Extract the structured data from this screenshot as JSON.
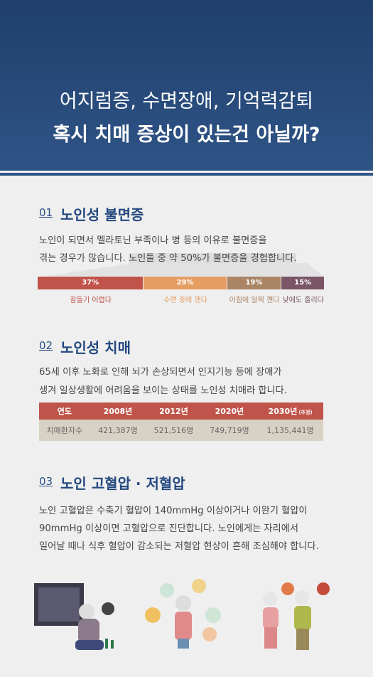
{
  "header": {
    "title_lines": [
      "어지럼증, 수면장애, 기억력감퇴",
      "혹시 치매 증상이 있는건 아닐까?"
    ]
  },
  "sections": [
    {
      "number": "01",
      "title": "노인성 불면증",
      "body_lines": [
        "노인이 되면서 멜라토닌 부족이나 병 등의 이유로 불면증을",
        "겪는 경우가 많습니다."
      ],
      "highlight": "노인들 중 약 50%가 불면증을 경험합니다.",
      "chart": {
        "type": "stacked-bar",
        "categories": [
          "잠들기 어렵다",
          "수면 중에 깬다",
          "아침에 일찍 깬다",
          "낮에도 졸리다"
        ],
        "values": [
          37,
          29,
          19,
          15
        ],
        "value_labels": [
          "37%",
          "29%",
          "19%",
          "15%"
        ],
        "colors": [
          "#c0544a",
          "#e59d62",
          "#a98465",
          "#7a5566"
        ]
      }
    },
    {
      "number": "02",
      "title": "노인성 치매",
      "body_lines": [
        "65세 이후 노화로 인해 뇌가 손상되면서 인지기능 등에 장애가",
        "생겨 일상생활에 어려움을 보이는 상태를 노인성 치매라 합니다."
      ],
      "table": {
        "header": [
          "연도",
          "2008년",
          "2012년",
          "2020년",
          "2030년"
        ],
        "header_note": "(추정)",
        "rows": [
          [
            "치매환자수",
            "421,387명",
            "521,516명",
            "749,719명",
            "1,135,441명"
          ]
        ]
      }
    },
    {
      "number": "03",
      "title": "노인 고혈압 · 저혈압",
      "body_lines": [
        "노인 고혈압은 수축기 혈압이 140mmHg 이상이거나 이완기 혈압이",
        "90mmHg 이상이면 고혈압으로 진단합니다. 노인에게는 자리에서",
        "일어날 때나 식후 혈압이 감소되는 저혈압 현상이 흔해 조심해야 합니다."
      ]
    }
  ]
}
